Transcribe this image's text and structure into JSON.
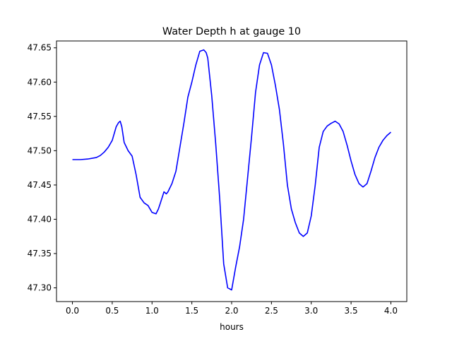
{
  "chart_data": {
    "type": "line",
    "title": "Water Depth h at gauge 10",
    "xlabel": "hours",
    "ylabel": "",
    "xlim": [
      -0.2,
      4.2
    ],
    "ylim": [
      47.28,
      47.66
    ],
    "xticks": [
      "0.0",
      "0.5",
      "1.0",
      "1.5",
      "2.0",
      "2.5",
      "3.0",
      "3.5",
      "4.0"
    ],
    "yticks": [
      "47.30",
      "47.35",
      "47.40",
      "47.45",
      "47.50",
      "47.55",
      "47.60",
      "47.65"
    ],
    "grid": false,
    "series": [
      {
        "color": "#0000ff",
        "x": [
          0.0,
          0.1,
          0.2,
          0.3,
          0.35,
          0.4,
          0.45,
          0.5,
          0.55,
          0.58,
          0.6,
          0.62,
          0.65,
          0.7,
          0.75,
          0.8,
          0.85,
          0.9,
          0.95,
          1.0,
          1.05,
          1.08,
          1.1,
          1.15,
          1.18,
          1.2,
          1.25,
          1.3,
          1.35,
          1.4,
          1.45,
          1.5,
          1.55,
          1.6,
          1.65,
          1.68,
          1.7,
          1.75,
          1.8,
          1.85,
          1.9,
          1.95,
          2.0,
          2.05,
          2.1,
          2.15,
          2.2,
          2.25,
          2.3,
          2.35,
          2.4,
          2.45,
          2.5,
          2.55,
          2.6,
          2.65,
          2.7,
          2.75,
          2.8,
          2.85,
          2.9,
          2.95,
          3.0,
          3.05,
          3.1,
          3.15,
          3.2,
          3.25,
          3.3,
          3.35,
          3.4,
          3.45,
          3.5,
          3.55,
          3.6,
          3.65,
          3.7,
          3.75,
          3.8,
          3.85,
          3.9,
          3.95,
          4.0
        ],
        "y": [
          47.487,
          47.487,
          47.488,
          47.49,
          47.493,
          47.498,
          47.505,
          47.515,
          47.535,
          47.541,
          47.543,
          47.535,
          47.512,
          47.5,
          47.492,
          47.465,
          47.432,
          47.424,
          47.42,
          47.41,
          47.408,
          47.415,
          47.422,
          47.44,
          47.437,
          47.44,
          47.452,
          47.47,
          47.505,
          47.54,
          47.578,
          47.6,
          47.625,
          47.645,
          47.647,
          47.643,
          47.635,
          47.58,
          47.51,
          47.43,
          47.335,
          47.3,
          47.297,
          47.33,
          47.36,
          47.4,
          47.46,
          47.52,
          47.585,
          47.625,
          47.643,
          47.642,
          47.625,
          47.595,
          47.56,
          47.51,
          47.45,
          47.415,
          47.395,
          47.38,
          47.375,
          47.38,
          47.405,
          47.45,
          47.505,
          47.528,
          47.536,
          47.54,
          47.543,
          47.539,
          47.528,
          47.508,
          47.485,
          47.465,
          47.452,
          47.447,
          47.452,
          47.47,
          47.49,
          47.505,
          47.515,
          47.522,
          47.527
        ]
      }
    ]
  }
}
